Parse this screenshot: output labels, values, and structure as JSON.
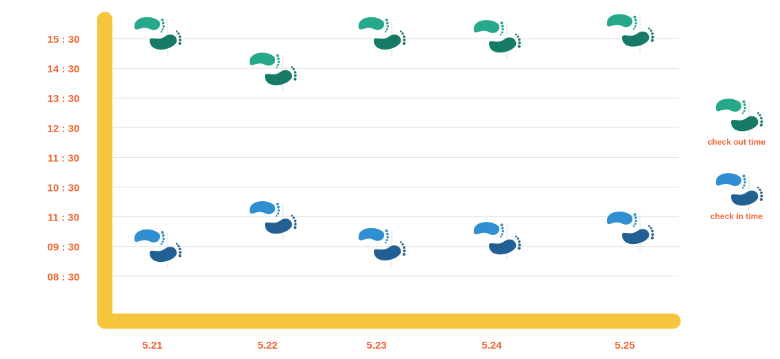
{
  "chart_data": {
    "type": "scatter",
    "categories": [
      "5.21",
      "5.22",
      "5.23",
      "5.24",
      "5.25"
    ],
    "y_tick_labels": [
      "15 : 30",
      "14 : 30",
      "13 : 30",
      "12 : 30",
      "11 : 30",
      "10 : 30",
      "11 : 30",
      "09 : 30",
      "08 : 30"
    ],
    "ylim": [
      7.4,
      16.3
    ],
    "grid": true,
    "legend_position": "right",
    "series": [
      {
        "name": "check out time",
        "icon": "footprints-icon",
        "color_light": "#28a88a",
        "color_dark": "#157a66",
        "values": [
          15.65,
          14.45,
          15.65,
          15.55,
          15.75
        ]
      },
      {
        "name": "check in time",
        "icon": "footprints-icon",
        "color_light": "#2f8fd0",
        "color_dark": "#225f92",
        "values": [
          8.5,
          9.45,
          8.55,
          8.75,
          9.1
        ]
      }
    ]
  },
  "colors": {
    "axis": "#f5c53d",
    "label": "#ef6330",
    "grid": "#dedede"
  }
}
